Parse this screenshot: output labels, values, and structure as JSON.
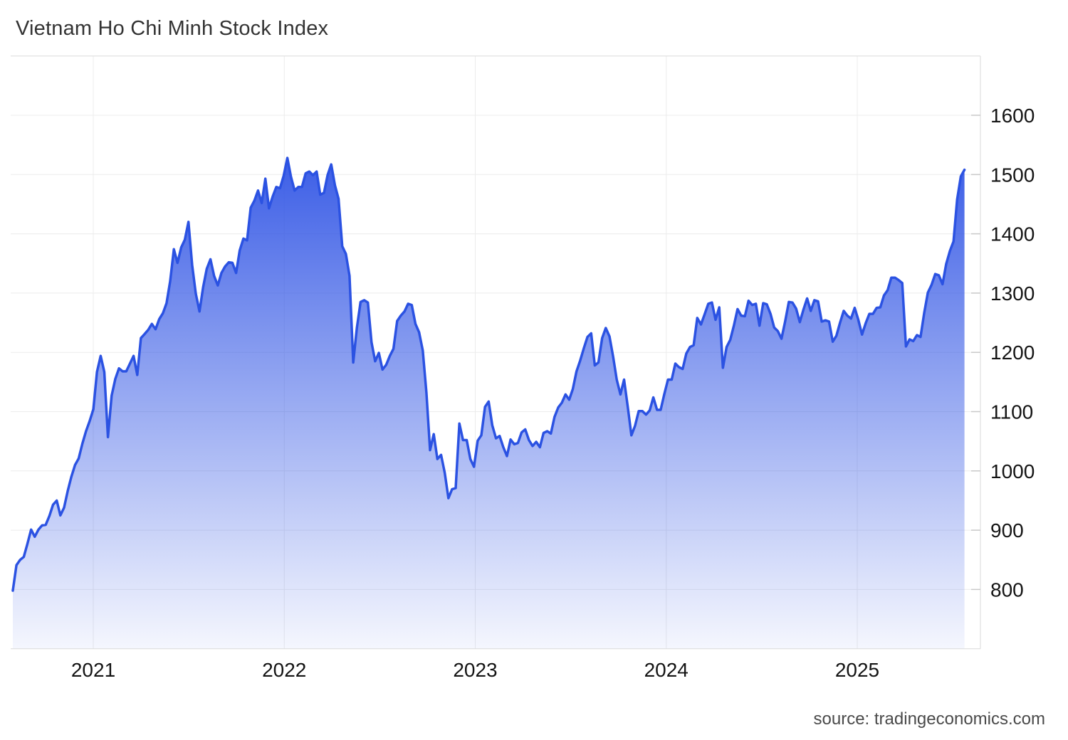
{
  "chart_data": {
    "type": "area",
    "title": "Vietnam Ho Chi Minh Stock Index",
    "source": "source: tradingeconomics.com",
    "legend": "none",
    "grid": true,
    "x_axis": {
      "tick_labels": [
        "2021",
        "2022",
        "2023",
        "2024",
        "2025"
      ],
      "tick_values": [
        2021,
        2022,
        2023,
        2024,
        2025
      ],
      "xlim": [
        2020.5675,
        2025.645
      ]
    },
    "y_axis": {
      "side": "right",
      "tick_labels": [
        "1600",
        "1500",
        "1400",
        "1300",
        "1200",
        "1100",
        "1000",
        "900",
        "800"
      ],
      "tick_values": [
        1600,
        1500,
        1400,
        1300,
        1200,
        1100,
        1000,
        900,
        800
      ],
      "ylim": [
        700,
        1700
      ]
    },
    "series": [
      {
        "name": "Vietnam Ho Chi Minh Stock Index",
        "frequency": "weekly",
        "x_start_year_fraction": 2020.5786,
        "x_step_years": 0.0191654,
        "values": [
          798,
          841,
          850,
          855,
          877,
          901,
          889,
          901,
          908,
          909,
          924,
          943,
          950,
          925,
          938,
          966,
          990,
          1010,
          1021,
          1046,
          1067,
          1084,
          1104,
          1167,
          1194,
          1167,
          1057,
          1127,
          1155,
          1173,
          1168,
          1168,
          1181,
          1194,
          1162,
          1224,
          1231,
          1238,
          1248,
          1239,
          1256,
          1266,
          1283,
          1320,
          1374,
          1351,
          1377,
          1390,
          1420,
          1347,
          1299,
          1269,
          1310,
          1341,
          1357,
          1329,
          1313,
          1334,
          1345,
          1352,
          1351,
          1334,
          1372,
          1392,
          1389,
          1444,
          1456,
          1473,
          1452,
          1493,
          1443,
          1463,
          1479,
          1477,
          1498,
          1528,
          1496,
          1473,
          1479,
          1479,
          1502,
          1505,
          1499,
          1505,
          1466,
          1469,
          1499,
          1517,
          1482,
          1459,
          1379,
          1366,
          1329,
          1183,
          1241,
          1285,
          1288,
          1284,
          1217,
          1185,
          1199,
          1171,
          1179,
          1194,
          1206,
          1253,
          1262,
          1269,
          1282,
          1280,
          1248,
          1234,
          1203,
          1132,
          1035,
          1062,
          1020,
          1027,
          997,
          954,
          969,
          971,
          1080,
          1052,
          1052,
          1020,
          1007,
          1051,
          1060,
          1108,
          1117,
          1077,
          1055,
          1059,
          1040,
          1025,
          1053,
          1045,
          1047,
          1065,
          1070,
          1052,
          1042,
          1049,
          1040,
          1064,
          1067,
          1063,
          1091,
          1107,
          1115,
          1129,
          1120,
          1138,
          1168,
          1186,
          1207,
          1226,
          1232,
          1178,
          1183,
          1224,
          1241,
          1227,
          1193,
          1154,
          1129,
          1154,
          1108,
          1060,
          1076,
          1101,
          1101,
          1095,
          1102,
          1124,
          1103,
          1103,
          1130,
          1154,
          1154,
          1181,
          1175,
          1172,
          1198,
          1209,
          1212,
          1258,
          1247,
          1264,
          1282,
          1284,
          1255,
          1276,
          1174,
          1209,
          1221,
          1245,
          1273,
          1262,
          1261,
          1287,
          1280,
          1282,
          1245,
          1283,
          1281,
          1265,
          1242,
          1236,
          1223,
          1252,
          1285,
          1284,
          1274,
          1251,
          1272,
          1291,
          1270,
          1288,
          1286,
          1252,
          1254,
          1252,
          1218,
          1228,
          1250,
          1270,
          1262,
          1257,
          1275,
          1255,
          1230,
          1249,
          1265,
          1265,
          1275,
          1276,
          1296,
          1305,
          1326,
          1326,
          1322,
          1317,
          1210,
          1222,
          1219,
          1229,
          1226,
          1267,
          1301,
          1314,
          1332,
          1330,
          1315,
          1349,
          1371,
          1387,
          1458,
          1497,
          1508
        ]
      }
    ],
    "last_value": 1508
  },
  "colors": {
    "accent_line": "#2B52E2",
    "fill_base": "#2B50E4",
    "grid": "#ECECEC",
    "axis": "#DADADA",
    "tick": "#C9C9C9",
    "title_text": "#333333",
    "tick_label_text": "#141414",
    "source_text": "#4A4A4A",
    "background": "#FFFFFF"
  }
}
